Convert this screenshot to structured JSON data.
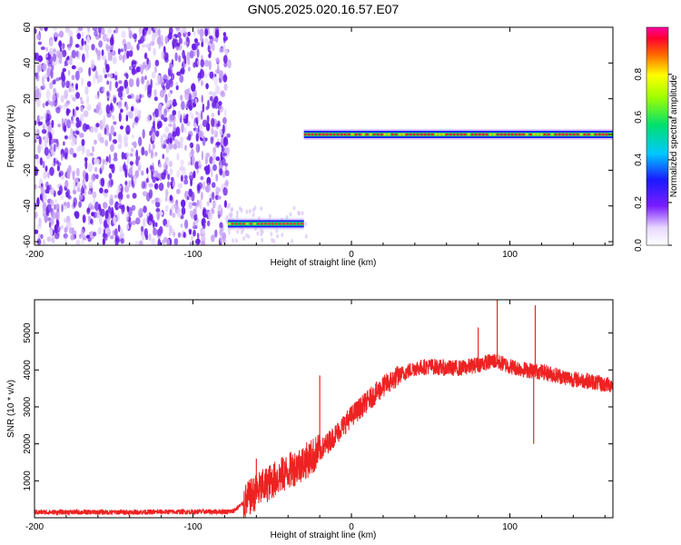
{
  "title": "GN05.2025.020.16.57.E07",
  "chart_data": [
    {
      "type": "heatmap",
      "xlabel": "Height of straight line (km)",
      "ylabel": "Frequency (Hz)",
      "xlim": [
        -200,
        165
      ],
      "ylim": [
        -62,
        60
      ],
      "x_ticks": [
        "-200",
        "-100",
        "0",
        "100"
      ],
      "y_ticks": [
        "60",
        "40",
        "20",
        "0",
        "-20",
        "-40",
        "-60"
      ],
      "colorbar": {
        "label": "Normalized spectral amplitude",
        "range": [
          0.0,
          1.0
        ],
        "ticks": [
          "0.0",
          "0.2",
          "0.4",
          "0.6",
          "0.8"
        ]
      },
      "regions": [
        {
          "kind": "noise",
          "x_range": [
            -200,
            -77
          ],
          "freq_range": [
            -62,
            60
          ],
          "amplitude": 0.1
        },
        {
          "kind": "tone",
          "x_range": [
            -78,
            -30
          ],
          "freq": -50,
          "amplitude": 0.7
        },
        {
          "kind": "tone",
          "x_range": [
            -30,
            165
          ],
          "freq": 0,
          "amplitude": 0.95
        }
      ],
      "colors": {
        "noise": "#6a1ee8",
        "low": "#c49ef5",
        "tone_edge": "#1a1aff",
        "tone_mid": "#00e070",
        "tone_core": "#ff2a2a"
      }
    },
    {
      "type": "line",
      "xlabel": "Height of straight line (km)",
      "ylabel": "SNR (10 * v/v)",
      "xlim": [
        -200,
        165
      ],
      "ylim": [
        0,
        5900
      ],
      "x_ticks": [
        "-200",
        "-100",
        "0",
        "100"
      ],
      "y_ticks": [
        "5000",
        "4000",
        "3000",
        "2000",
        "1000"
      ],
      "series": [
        {
          "color": "#ee2222",
          "x": [
            -200,
            -150,
            -100,
            -75,
            -68,
            -60,
            -50,
            -40,
            -30,
            -20,
            -10,
            0,
            10,
            20,
            30,
            40,
            50,
            60,
            70,
            80,
            90,
            100,
            110,
            120,
            130,
            140,
            150,
            160,
            165
          ],
          "y": [
            150,
            150,
            160,
            170,
            400,
            700,
            1000,
            1250,
            1500,
            1800,
            2250,
            2750,
            3150,
            3550,
            3850,
            4050,
            4100,
            4050,
            4050,
            4150,
            4250,
            4100,
            4000,
            3950,
            3850,
            3750,
            3700,
            3600,
            3600
          ]
        }
      ],
      "spikes": [
        {
          "x": -60,
          "y": 1600
        },
        {
          "x": -20,
          "y": 3850
        },
        {
          "x": 80,
          "y": 5150
        },
        {
          "x": 92,
          "y": 5900
        },
        {
          "x": 116,
          "y": 5750
        },
        {
          "x": 115,
          "y": 2000
        }
      ]
    }
  ]
}
